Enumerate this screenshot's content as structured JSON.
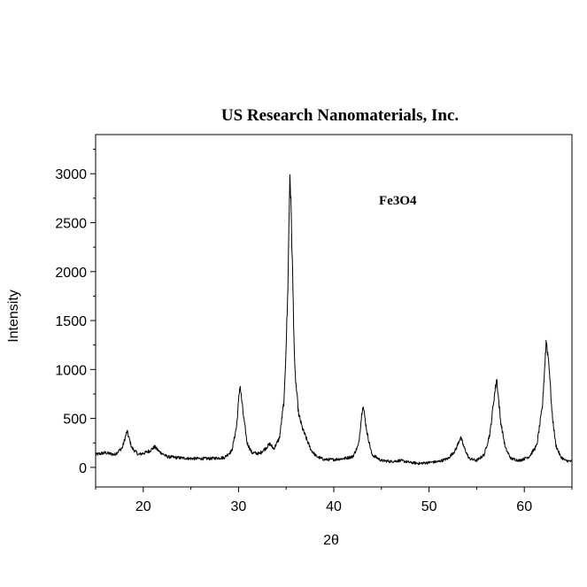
{
  "chart_data": {
    "type": "line",
    "title": "US Research Nanomaterials, Inc.",
    "xlabel": "2θ",
    "ylabel": "Intensity",
    "annotation": "Fe3O4",
    "xlim": [
      15,
      65
    ],
    "ylim": [
      -200,
      3400
    ],
    "xticks": [
      20,
      30,
      40,
      50,
      60
    ],
    "yticks": [
      0,
      500,
      1000,
      1500,
      2000,
      2500,
      3000
    ],
    "grid": false,
    "series": [
      {
        "color": "#000000",
        "x": [
          15,
          16,
          17,
          17.8,
          18.3,
          18.8,
          19.5,
          20.2,
          20.7,
          21.2,
          21.7,
          22.5,
          23.5,
          25,
          27,
          28.5,
          29.3,
          29.8,
          30.15,
          30.5,
          30.9,
          31.4,
          32.2,
          32.9,
          33.3,
          33.7,
          34.3,
          34.8,
          35.15,
          35.4,
          35.6,
          35.9,
          36.3,
          36.7,
          37.1,
          37.6,
          38.2,
          39,
          40,
          41,
          42,
          42.6,
          43.05,
          43.5,
          44,
          45,
          46,
          47,
          48,
          49,
          50,
          51,
          52,
          52.8,
          53.3,
          53.7,
          54.2,
          55,
          55.8,
          56.4,
          56.8,
          57.1,
          57.5,
          58,
          58.6,
          59.5,
          60.5,
          61.3,
          61.9,
          62.3,
          62.6,
          62.9,
          63.3,
          63.8,
          64.3,
          65
        ],
        "y": [
          130,
          150,
          130,
          200,
          370,
          200,
          130,
          150,
          170,
          210,
          160,
          110,
          100,
          90,
          90,
          100,
          170,
          420,
          850,
          540,
          250,
          150,
          140,
          200,
          240,
          190,
          300,
          700,
          1700,
          3050,
          2300,
          1000,
          550,
          400,
          300,
          180,
          110,
          80,
          80,
          90,
          110,
          230,
          650,
          350,
          130,
          70,
          60,
          70,
          50,
          40,
          50,
          60,
          90,
          180,
          310,
          200,
          90,
          70,
          130,
          350,
          690,
          910,
          480,
          200,
          90,
          70,
          110,
          220,
          620,
          1300,
          1050,
          560,
          230,
          110,
          70,
          60
        ]
      }
    ]
  }
}
